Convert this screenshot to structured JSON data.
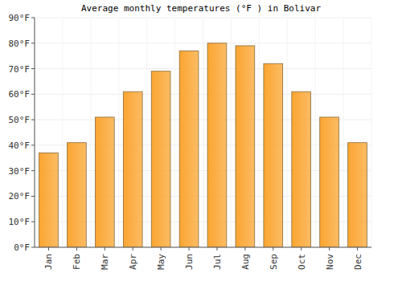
{
  "chart_data": {
    "type": "bar",
    "title": "Average monthly temperatures (°F ) in Bolivar",
    "categories": [
      "Jan",
      "Feb",
      "Mar",
      "Apr",
      "May",
      "Jun",
      "Jul",
      "Aug",
      "Sep",
      "Oct",
      "Nov",
      "Dec"
    ],
    "values": [
      37,
      41,
      51,
      61,
      69,
      77,
      80,
      79,
      72,
      61,
      51,
      41
    ],
    "color": "#fba531",
    "ylim": [
      0,
      90
    ],
    "yticks": [
      {
        "value": 0,
        "label": "0°F"
      },
      {
        "value": 10,
        "label": "10°F"
      },
      {
        "value": 20,
        "label": "20°F"
      },
      {
        "value": 30,
        "label": "30°F"
      },
      {
        "value": 40,
        "label": "40°F"
      },
      {
        "value": 50,
        "label": "50°F"
      },
      {
        "value": 60,
        "label": "60°F"
      },
      {
        "value": 70,
        "label": "70°F"
      },
      {
        "value": 80,
        "label": "80°F"
      },
      {
        "value": 90,
        "label": "90°F"
      }
    ],
    "grid": true
  }
}
